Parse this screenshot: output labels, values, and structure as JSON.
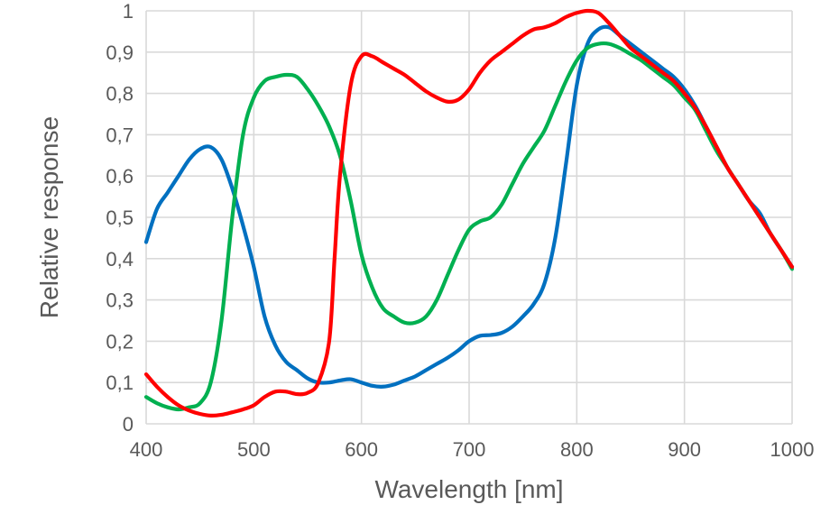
{
  "chart_data": {
    "type": "line",
    "title": "",
    "xlabel": "Wavelength [nm]",
    "ylabel": "Relative response",
    "xlim": [
      400,
      1000
    ],
    "ylim": [
      0,
      1
    ],
    "x_ticks": [
      400,
      500,
      600,
      700,
      800,
      900,
      1000
    ],
    "x_tick_labels": [
      "400",
      "500",
      "600",
      "700",
      "800",
      "900",
      "1000"
    ],
    "y_ticks": [
      0,
      0.1,
      0.2,
      0.3,
      0.4,
      0.5,
      0.6,
      0.7,
      0.8,
      0.9,
      1
    ],
    "y_tick_labels": [
      "0",
      "0,1",
      "0,2",
      "0,3",
      "0,4",
      "0,5",
      "0,6",
      "0,7",
      "0,8",
      "0,9",
      "1"
    ],
    "grid": true,
    "legend": "none",
    "series": [
      {
        "color": "#0070C0",
        "points": [
          [
            400,
            0.44
          ],
          [
            410,
            0.52
          ],
          [
            420,
            0.56
          ],
          [
            430,
            0.6
          ],
          [
            440,
            0.64
          ],
          [
            450,
            0.665
          ],
          [
            460,
            0.67
          ],
          [
            470,
            0.64
          ],
          [
            480,
            0.57
          ],
          [
            490,
            0.48
          ],
          [
            500,
            0.38
          ],
          [
            510,
            0.26
          ],
          [
            520,
            0.19
          ],
          [
            530,
            0.15
          ],
          [
            540,
            0.13
          ],
          [
            550,
            0.11
          ],
          [
            560,
            0.1
          ],
          [
            570,
            0.1
          ],
          [
            580,
            0.105
          ],
          [
            590,
            0.108
          ],
          [
            600,
            0.1
          ],
          [
            610,
            0.092
          ],
          [
            620,
            0.09
          ],
          [
            630,
            0.095
          ],
          [
            640,
            0.105
          ],
          [
            650,
            0.115
          ],
          [
            660,
            0.13
          ],
          [
            670,
            0.145
          ],
          [
            680,
            0.16
          ],
          [
            690,
            0.178
          ],
          [
            700,
            0.2
          ],
          [
            710,
            0.213
          ],
          [
            720,
            0.215
          ],
          [
            730,
            0.22
          ],
          [
            740,
            0.235
          ],
          [
            750,
            0.26
          ],
          [
            760,
            0.29
          ],
          [
            770,
            0.34
          ],
          [
            780,
            0.45
          ],
          [
            790,
            0.63
          ],
          [
            800,
            0.82
          ],
          [
            810,
            0.92
          ],
          [
            820,
            0.955
          ],
          [
            830,
            0.96
          ],
          [
            840,
            0.94
          ],
          [
            850,
            0.92
          ],
          [
            860,
            0.9
          ],
          [
            870,
            0.88
          ],
          [
            880,
            0.86
          ],
          [
            890,
            0.84
          ],
          [
            900,
            0.81
          ],
          [
            910,
            0.77
          ],
          [
            920,
            0.72
          ],
          [
            930,
            0.67
          ],
          [
            940,
            0.62
          ],
          [
            950,
            0.58
          ],
          [
            960,
            0.54
          ],
          [
            970,
            0.51
          ],
          [
            980,
            0.46
          ],
          [
            990,
            0.42
          ],
          [
            1000,
            0.38
          ]
        ]
      },
      {
        "color": "#00B050",
        "points": [
          [
            400,
            0.065
          ],
          [
            410,
            0.05
          ],
          [
            420,
            0.04
          ],
          [
            430,
            0.035
          ],
          [
            440,
            0.04
          ],
          [
            450,
            0.05
          ],
          [
            460,
            0.1
          ],
          [
            470,
            0.25
          ],
          [
            480,
            0.5
          ],
          [
            490,
            0.7
          ],
          [
            500,
            0.79
          ],
          [
            510,
            0.83
          ],
          [
            520,
            0.84
          ],
          [
            530,
            0.845
          ],
          [
            540,
            0.84
          ],
          [
            550,
            0.81
          ],
          [
            560,
            0.77
          ],
          [
            570,
            0.72
          ],
          [
            580,
            0.65
          ],
          [
            590,
            0.54
          ],
          [
            600,
            0.41
          ],
          [
            610,
            0.33
          ],
          [
            620,
            0.28
          ],
          [
            630,
            0.26
          ],
          [
            640,
            0.245
          ],
          [
            650,
            0.245
          ],
          [
            660,
            0.26
          ],
          [
            670,
            0.3
          ],
          [
            680,
            0.36
          ],
          [
            690,
            0.42
          ],
          [
            700,
            0.47
          ],
          [
            710,
            0.49
          ],
          [
            720,
            0.5
          ],
          [
            730,
            0.53
          ],
          [
            740,
            0.58
          ],
          [
            750,
            0.63
          ],
          [
            760,
            0.67
          ],
          [
            770,
            0.71
          ],
          [
            780,
            0.77
          ],
          [
            790,
            0.83
          ],
          [
            800,
            0.88
          ],
          [
            810,
            0.91
          ],
          [
            820,
            0.92
          ],
          [
            830,
            0.92
          ],
          [
            840,
            0.91
          ],
          [
            850,
            0.895
          ],
          [
            860,
            0.88
          ],
          [
            870,
            0.86
          ],
          [
            880,
            0.84
          ],
          [
            890,
            0.82
          ],
          [
            900,
            0.79
          ],
          [
            910,
            0.76
          ],
          [
            920,
            0.71
          ],
          [
            930,
            0.66
          ],
          [
            940,
            0.62
          ],
          [
            950,
            0.58
          ],
          [
            960,
            0.54
          ],
          [
            970,
            0.5
          ],
          [
            980,
            0.46
          ],
          [
            990,
            0.42
          ],
          [
            1000,
            0.375
          ]
        ]
      },
      {
        "color": "#FF0000",
        "points": [
          [
            400,
            0.12
          ],
          [
            410,
            0.09
          ],
          [
            420,
            0.065
          ],
          [
            430,
            0.045
          ],
          [
            440,
            0.032
          ],
          [
            450,
            0.024
          ],
          [
            460,
            0.02
          ],
          [
            470,
            0.022
          ],
          [
            480,
            0.028
          ],
          [
            490,
            0.035
          ],
          [
            500,
            0.045
          ],
          [
            510,
            0.065
          ],
          [
            520,
            0.078
          ],
          [
            530,
            0.078
          ],
          [
            540,
            0.072
          ],
          [
            550,
            0.075
          ],
          [
            560,
            0.1
          ],
          [
            570,
            0.2
          ],
          [
            575,
            0.4
          ],
          [
            580,
            0.6
          ],
          [
            590,
            0.82
          ],
          [
            600,
            0.89
          ],
          [
            610,
            0.89
          ],
          [
            620,
            0.875
          ],
          [
            630,
            0.86
          ],
          [
            640,
            0.845
          ],
          [
            650,
            0.825
          ],
          [
            660,
            0.805
          ],
          [
            670,
            0.79
          ],
          [
            680,
            0.78
          ],
          [
            690,
            0.785
          ],
          [
            700,
            0.81
          ],
          [
            710,
            0.85
          ],
          [
            720,
            0.88
          ],
          [
            730,
            0.9
          ],
          [
            740,
            0.92
          ],
          [
            750,
            0.94
          ],
          [
            760,
            0.955
          ],
          [
            770,
            0.96
          ],
          [
            780,
            0.97
          ],
          [
            790,
            0.985
          ],
          [
            800,
            0.995
          ],
          [
            810,
            1.0
          ],
          [
            820,
            0.995
          ],
          [
            830,
            0.97
          ],
          [
            840,
            0.94
          ],
          [
            850,
            0.91
          ],
          [
            860,
            0.89
          ],
          [
            870,
            0.87
          ],
          [
            880,
            0.85
          ],
          [
            890,
            0.83
          ],
          [
            900,
            0.8
          ],
          [
            910,
            0.765
          ],
          [
            920,
            0.72
          ],
          [
            930,
            0.67
          ],
          [
            940,
            0.62
          ],
          [
            950,
            0.58
          ],
          [
            960,
            0.54
          ],
          [
            970,
            0.5
          ],
          [
            980,
            0.46
          ],
          [
            990,
            0.42
          ],
          [
            1000,
            0.38
          ]
        ]
      }
    ]
  }
}
